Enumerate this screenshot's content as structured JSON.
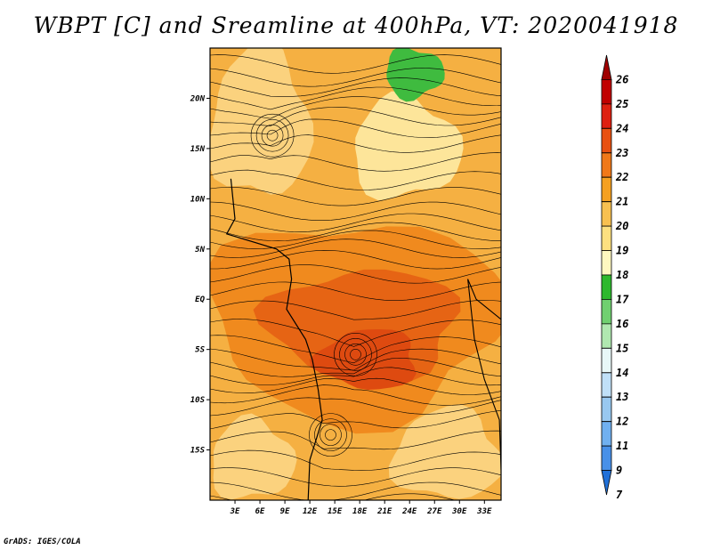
{
  "title": "WBPT [C] and Sreamline at 400hPa, VT: 2020041918",
  "credit": "GrADS: IGES/COLA",
  "map": {
    "lon_range": [
      0,
      35
    ],
    "lat_range": [
      -20,
      25
    ],
    "lat_ticks": [
      {
        "value": 20,
        "label": "20N"
      },
      {
        "value": 15,
        "label": "15N"
      },
      {
        "value": 10,
        "label": "10N"
      },
      {
        "value": 5,
        "label": "5N"
      },
      {
        "value": 0,
        "label": "EQ"
      },
      {
        "value": -5,
        "label": "5S"
      },
      {
        "value": -10,
        "label": "10S"
      },
      {
        "value": -15,
        "label": "15S"
      }
    ],
    "lon_ticks": [
      {
        "value": 3,
        "label": "3E"
      },
      {
        "value": 6,
        "label": "6E"
      },
      {
        "value": 9,
        "label": "9E"
      },
      {
        "value": 12,
        "label": "12E"
      },
      {
        "value": 15,
        "label": "15E"
      },
      {
        "value": 18,
        "label": "18E"
      },
      {
        "value": 21,
        "label": "21E"
      },
      {
        "value": 24,
        "label": "24E"
      },
      {
        "value": 27,
        "label": "27E"
      },
      {
        "value": 30,
        "label": "30E"
      },
      {
        "value": 33,
        "label": "33E"
      }
    ],
    "base_color": "#f5b042",
    "regions": [
      {
        "level": 20,
        "color": "#fbd27e",
        "lon": [
          0,
          12
        ],
        "lat": [
          10,
          25
        ]
      },
      {
        "level": 19,
        "color": "#fde59a",
        "lon": [
          17,
          30
        ],
        "lat": [
          10,
          20
        ]
      },
      {
        "level": 17,
        "color": "#3fbb3f",
        "lon": [
          21,
          28
        ],
        "lat": [
          20,
          25
        ]
      },
      {
        "level": 22,
        "color": "#f08a1e",
        "lon": [
          0,
          35
        ],
        "lat": [
          -12,
          8
        ]
      },
      {
        "level": 23,
        "color": "#e66414",
        "lon": [
          7,
          30
        ],
        "lat": [
          -8,
          3
        ]
      },
      {
        "level": 24,
        "color": "#de4a10",
        "lon": [
          13,
          25
        ],
        "lat": [
          -9,
          -3
        ]
      },
      {
        "level": 20,
        "color": "#fbd27e",
        "lon": [
          22,
          35
        ],
        "lat": [
          -20,
          -11
        ]
      },
      {
        "level": 20,
        "color": "#fbd27e",
        "lon": [
          0,
          10
        ],
        "lat": [
          -20,
          -12
        ]
      }
    ],
    "vortices": [
      {
        "lon": 7.5,
        "lat": 16.3
      },
      {
        "lon": 14.5,
        "lat": -13.5
      },
      {
        "lon": 17.5,
        "lat": -5.5
      }
    ]
  },
  "colorbar": {
    "levels": [
      {
        "label": "26",
        "color": "#a00000"
      },
      {
        "label": "25",
        "color": "#c00000"
      },
      {
        "label": "24",
        "color": "#de2010"
      },
      {
        "label": "23",
        "color": "#e85010"
      },
      {
        "label": "22",
        "color": "#f07818"
      },
      {
        "label": "21",
        "color": "#f5a020"
      },
      {
        "label": "20",
        "color": "#f8c050"
      },
      {
        "label": "19",
        "color": "#fde080"
      },
      {
        "label": "18",
        "color": "#fef8c0"
      },
      {
        "label": "17",
        "color": "#2eb82e"
      },
      {
        "label": "16",
        "color": "#70d070"
      },
      {
        "label": "15",
        "color": "#b0e8b0"
      },
      {
        "label": "14",
        "color": "#e8f8f8"
      },
      {
        "label": "13",
        "color": "#c0e0f8"
      },
      {
        "label": "12",
        "color": "#98c8f0"
      },
      {
        "label": "11",
        "color": "#70b0f0"
      },
      {
        "label": "9",
        "color": "#4890e8"
      },
      {
        "label": "7",
        "color": "#2070d8"
      }
    ]
  }
}
